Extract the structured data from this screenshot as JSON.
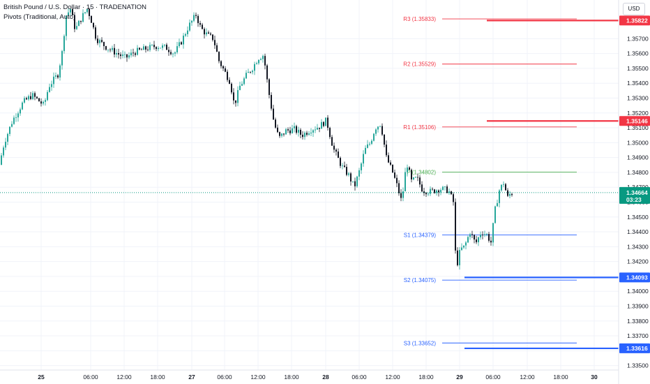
{
  "legend": {
    "title": "British Pound / U.S. Dollar · 15 · TRADENATION",
    "indicator": "Pivots (Traditional, Auto)"
  },
  "currency": "USD",
  "colors": {
    "up": "#26a69a",
    "down": "#131722",
    "resistance": "#f23645",
    "support": "#2962ff",
    "pivot": "#4caf50",
    "current": "#089981",
    "grid": "#f0f3fa"
  },
  "chart_data": {
    "type": "candlestick",
    "y_axis": {
      "ylim": [
        1.3347,
        1.3596
      ],
      "ticks": [
        "1.35700",
        "1.35600",
        "1.35500",
        "1.35400",
        "1.35300",
        "1.35200",
        "1.35100",
        "1.35000",
        "1.34900",
        "1.34800",
        "1.34700",
        "1.34600",
        "1.34500",
        "1.34400",
        "1.34300",
        "1.34200",
        "1.34100",
        "1.34000",
        "1.33900",
        "1.33800",
        "1.33700",
        "1.33600",
        "1.33500"
      ]
    },
    "x_axis": {
      "ticks": [
        "25",
        "06:00",
        "12:00",
        "18:00",
        "27",
        "06:00",
        "12:00",
        "18:00",
        "28",
        "06:00",
        "12:00",
        "18:00",
        "29",
        "06:00",
        "12:00",
        "18:00",
        "30"
      ]
    },
    "pivots": [
      {
        "name": "R3",
        "label": "R3 (1.35833)",
        "value": 1.35833,
        "kind": "resistance"
      },
      {
        "name": "R2",
        "label": "R2 (1.35529)",
        "value": 1.35529,
        "kind": "resistance"
      },
      {
        "name": "R1",
        "label": "R1 (1.35106)",
        "value": 1.35106,
        "kind": "resistance"
      },
      {
        "name": "P",
        "label": "P (1.34802)",
        "value": 1.34802,
        "kind": "pivot"
      },
      {
        "name": "S1",
        "label": "S1 (1.34379)",
        "value": 1.34379,
        "kind": "support"
      },
      {
        "name": "S2",
        "label": "S2 (1.34075)",
        "value": 1.34075,
        "kind": "support"
      },
      {
        "name": "S3",
        "label": "S3 (1.33652)",
        "value": 1.33652,
        "kind": "support"
      }
    ],
    "levels": [
      {
        "value": 1.35822,
        "label": "1.35822",
        "kind": "resistance"
      },
      {
        "value": 1.35146,
        "label": "1.35146",
        "kind": "resistance"
      },
      {
        "value": 1.34093,
        "label": "1.34093",
        "kind": "support"
      },
      {
        "value": 1.33616,
        "label": "1.33616",
        "kind": "support"
      }
    ],
    "current_price": {
      "value": 1.34664,
      "label": "1.34664",
      "countdown": "03:23"
    },
    "price_path": [
      [
        0,
        1.3483
      ],
      [
        8,
        1.35
      ],
      [
        20,
        1.3515
      ],
      [
        35,
        1.3527
      ],
      [
        48,
        1.3532
      ],
      [
        58,
        1.3528
      ],
      [
        65,
        1.3525
      ],
      [
        72,
        1.3538
      ],
      [
        85,
        1.3546
      ],
      [
        92,
        1.3563
      ],
      [
        96,
        1.3585
      ],
      [
        103,
        1.359
      ],
      [
        110,
        1.3576
      ],
      [
        120,
        1.3585
      ],
      [
        127,
        1.359
      ],
      [
        132,
        1.3584
      ],
      [
        140,
        1.357
      ],
      [
        155,
        1.3564
      ],
      [
        170,
        1.356
      ],
      [
        182,
        1.3557
      ],
      [
        195,
        1.3561
      ],
      [
        210,
        1.3563
      ],
      [
        225,
        1.3565
      ],
      [
        240,
        1.3564
      ],
      [
        252,
        1.356
      ],
      [
        262,
        1.3568
      ],
      [
        272,
        1.3578
      ],
      [
        283,
        1.3586
      ],
      [
        290,
        1.3577
      ],
      [
        300,
        1.3572
      ],
      [
        308,
        1.357
      ],
      [
        316,
        1.3555
      ],
      [
        325,
        1.3547
      ],
      [
        332,
        1.3541
      ],
      [
        338,
        1.3525
      ],
      [
        346,
        1.3538
      ],
      [
        355,
        1.3545
      ],
      [
        365,
        1.3551
      ],
      [
        372,
        1.3557
      ],
      [
        380,
        1.3559
      ],
      [
        387,
        1.3535
      ],
      [
        395,
        1.3513
      ],
      [
        402,
        1.3503
      ],
      [
        412,
        1.3508
      ],
      [
        424,
        1.3509
      ],
      [
        435,
        1.3505
      ],
      [
        448,
        1.3509
      ],
      [
        460,
        1.3511
      ],
      [
        470,
        1.3515
      ],
      [
        480,
        1.3496
      ],
      [
        492,
        1.3484
      ],
      [
        502,
        1.3478
      ],
      [
        510,
        1.347
      ],
      [
        518,
        1.3482
      ],
      [
        525,
        1.3495
      ],
      [
        533,
        1.35
      ],
      [
        540,
        1.351
      ],
      [
        548,
        1.3513
      ],
      [
        556,
        1.349
      ],
      [
        565,
        1.348
      ],
      [
        572,
        1.347
      ],
      [
        578,
        1.346
      ],
      [
        585,
        1.3487
      ],
      [
        592,
        1.3474
      ],
      [
        600,
        1.3476
      ],
      [
        608,
        1.3468
      ],
      [
        620,
        1.3467
      ],
      [
        632,
        1.3469
      ],
      [
        645,
        1.3468
      ],
      [
        652,
        1.346
      ],
      [
        656,
        1.3415
      ],
      [
        662,
        1.3428
      ],
      [
        668,
        1.343
      ],
      [
        676,
        1.344
      ],
      [
        684,
        1.3432
      ],
      [
        692,
        1.344
      ],
      [
        700,
        1.3438
      ],
      [
        706,
        1.3433
      ],
      [
        712,
        1.3455
      ],
      [
        718,
        1.3468
      ],
      [
        724,
        1.3473
      ],
      [
        730,
        1.3463
      ],
      [
        734,
        1.3466
      ]
    ]
  }
}
